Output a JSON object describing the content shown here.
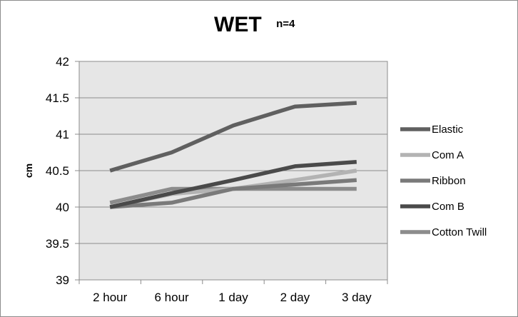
{
  "chart_data": {
    "type": "line",
    "title": "WET",
    "subtitle": "n=4",
    "xlabel": "",
    "ylabel": "cm",
    "categories": [
      "2 hour",
      "6 hour",
      "1 day",
      "2 day",
      "3 day"
    ],
    "ylim": [
      39,
      42
    ],
    "yticks": [
      39,
      39.5,
      40,
      40.5,
      41,
      41.5,
      42
    ],
    "ytick_labels": [
      "39",
      "39.5",
      "40",
      "40.5",
      "41",
      "41.5",
      "42"
    ],
    "grid": "horizontal",
    "plot_background": "#e6e6e6",
    "legend_position": "right",
    "series": [
      {
        "name": "Elastic",
        "color": "#606060",
        "values": [
          40.5,
          40.75,
          41.12,
          41.38,
          41.43
        ]
      },
      {
        "name": "Com A",
        "color": "#b3b3b3",
        "values": [
          40.0,
          40.18,
          40.25,
          40.37,
          40.5
        ]
      },
      {
        "name": "Ribbon",
        "color": "#7a7a7a",
        "values": [
          40.0,
          40.06,
          40.25,
          40.31,
          40.37
        ]
      },
      {
        "name": "Com B",
        "color": "#4a4a4a",
        "values": [
          40.0,
          40.19,
          40.37,
          40.56,
          40.62
        ]
      },
      {
        "name": "Cotton Twill",
        "color": "#8c8c8c",
        "values": [
          40.06,
          40.25,
          40.25,
          40.25,
          40.25
        ]
      }
    ]
  }
}
